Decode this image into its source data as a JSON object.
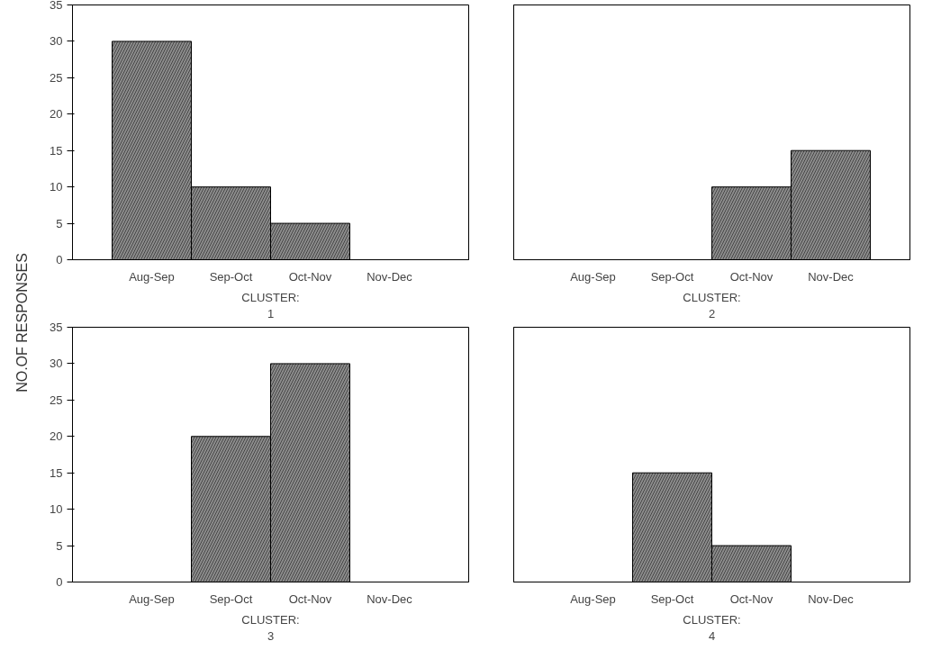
{
  "chart_data": [
    {
      "type": "bar",
      "categories": [
        "Aug-Sep",
        "Sep-Oct",
        "Oct-Nov",
        "Nov-Dec"
      ],
      "values": [
        30,
        10,
        5,
        0
      ],
      "color": "#8c8c8c",
      "xlabel": "CLUSTER:\n1",
      "ylabel": "NO.OF RESPONSES",
      "ylim": [
        0,
        35
      ],
      "yticks": [
        0,
        5,
        10,
        15,
        20,
        25,
        30,
        35
      ],
      "grid": false
    },
    {
      "type": "bar",
      "categories": [
        "Aug-Sep",
        "Sep-Oct",
        "Oct-Nov",
        "Nov-Dec"
      ],
      "values": [
        0,
        0,
        10,
        15
      ],
      "color": "#8c8c8c",
      "xlabel": "CLUSTER:\n2",
      "ylim": [
        0,
        35
      ],
      "yticks": [
        0,
        5,
        10,
        15,
        20,
        25,
        30,
        35
      ],
      "grid": false,
      "tick_labels": "x"
    },
    {
      "type": "bar",
      "categories": [
        "Aug-Sep",
        "Sep-Oct",
        "Oct-Nov",
        "Nov-Dec"
      ],
      "values": [
        0,
        20,
        30,
        0
      ],
      "color": "#8c8c8c",
      "xlabel": "CLUSTER:\n3",
      "ylim": [
        0,
        35
      ],
      "yticks": [
        0,
        5,
        10,
        15,
        20,
        25,
        30,
        35
      ],
      "grid": false
    },
    {
      "type": "bar",
      "categories": [
        "Aug-Sep",
        "Sep-Oct",
        "Oct-Nov",
        "Nov-Dec"
      ],
      "values": [
        0,
        15,
        5,
        0
      ],
      "color": "#8c8c8c",
      "xlabel": "CLUSTER:\n4",
      "ylim": [
        0,
        35
      ],
      "yticks": [
        0,
        5,
        10,
        15,
        20,
        25,
        30,
        35
      ],
      "grid": false,
      "tick_labels": "x"
    }
  ]
}
